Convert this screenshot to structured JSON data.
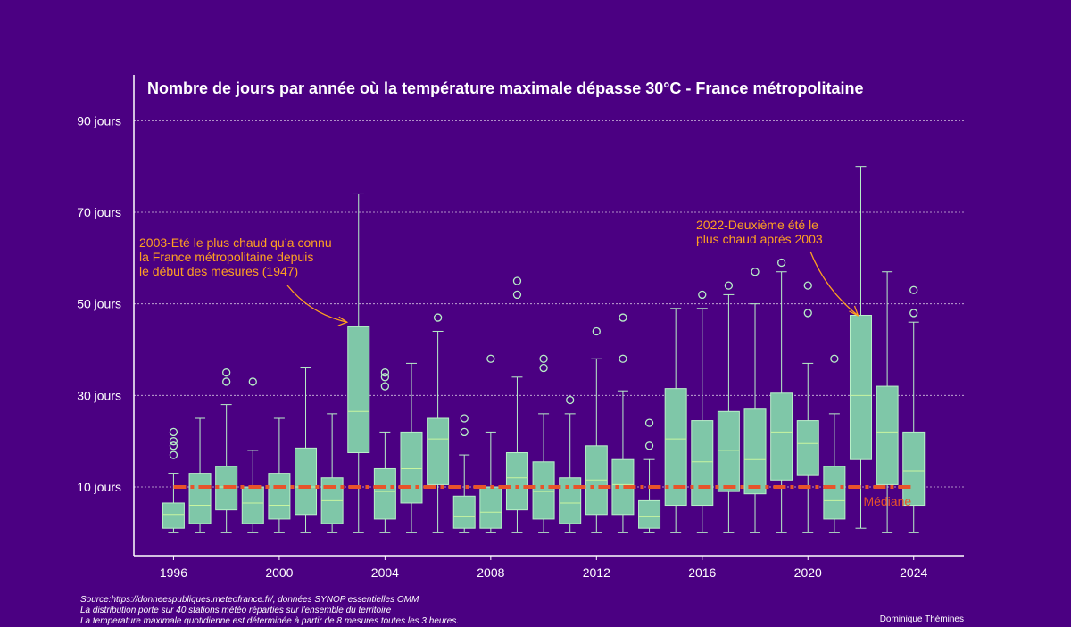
{
  "chart_data": {
    "type": "boxplot",
    "title": "Nombre de jours par année où la température maximale dépasse 30°C - France métropolitaine",
    "ylim": [
      -5,
      100
    ],
    "xlim": [
      1994.5,
      2025.9
    ],
    "yticks": [
      {
        "value": 10,
        "label": "10 jours"
      },
      {
        "value": 30,
        "label": "30 jours"
      },
      {
        "value": 50,
        "label": "50 jours"
      },
      {
        "value": 70,
        "label": "70 jours"
      },
      {
        "value": 90,
        "label": "90 jours"
      }
    ],
    "xticks": [
      1996,
      2000,
      2004,
      2008,
      2012,
      2016,
      2020,
      2024
    ],
    "grid": true,
    "colors": {
      "background": "#4b0082",
      "box_fill": "#7fc7a8",
      "box_edge": "#b8f0c8",
      "median_line": "#e8542a",
      "annotation": "#ffa020"
    },
    "boxes": [
      {
        "year": 1996,
        "low": 0,
        "q1": 1,
        "median": 4,
        "q3": 6.5,
        "high": 13,
        "outliers": [
          17,
          19,
          20,
          22
        ]
      },
      {
        "year": 1997,
        "low": 0,
        "q1": 2,
        "median": 6,
        "q3": 13,
        "high": 25,
        "outliers": []
      },
      {
        "year": 1998,
        "low": 0,
        "q1": 5,
        "median": 10,
        "q3": 14.5,
        "high": 28,
        "outliers": [
          33,
          35
        ]
      },
      {
        "year": 1999,
        "low": 0,
        "q1": 2,
        "median": 6.5,
        "q3": 10,
        "high": 18,
        "outliers": [
          33
        ]
      },
      {
        "year": 2000,
        "low": 0,
        "q1": 3,
        "median": 6,
        "q3": 13,
        "high": 25,
        "outliers": []
      },
      {
        "year": 2001,
        "low": 0,
        "q1": 4,
        "median": 10,
        "q3": 18.5,
        "high": 36,
        "outliers": []
      },
      {
        "year": 2002,
        "low": 0,
        "q1": 2,
        "median": 7,
        "q3": 12,
        "high": 26,
        "outliers": []
      },
      {
        "year": 2003,
        "low": 0,
        "q1": 17.5,
        "median": 26.5,
        "q3": 45,
        "high": 74,
        "outliers": []
      },
      {
        "year": 2004,
        "low": 0,
        "q1": 3,
        "median": 9,
        "q3": 14,
        "high": 22,
        "outliers": [
          32,
          34,
          35
        ]
      },
      {
        "year": 2005,
        "low": 0,
        "q1": 6.5,
        "median": 14,
        "q3": 22,
        "high": 37,
        "outliers": []
      },
      {
        "year": 2006,
        "low": 0,
        "q1": 10.5,
        "median": 20.5,
        "q3": 25,
        "high": 44,
        "outliers": [
          47
        ]
      },
      {
        "year": 2007,
        "low": 0,
        "q1": 1,
        "median": 3.5,
        "q3": 8,
        "high": 17,
        "outliers": [
          22,
          25
        ]
      },
      {
        "year": 2008,
        "low": 0,
        "q1": 1,
        "median": 4.5,
        "q3": 10,
        "high": 22,
        "outliers": [
          38
        ]
      },
      {
        "year": 2009,
        "low": 0,
        "q1": 5,
        "median": 12,
        "q3": 17.5,
        "high": 34,
        "outliers": [
          52,
          55
        ]
      },
      {
        "year": 2010,
        "low": 0,
        "q1": 3,
        "median": 9,
        "q3": 15.5,
        "high": 26,
        "outliers": [
          36,
          38
        ]
      },
      {
        "year": 2011,
        "low": 0,
        "q1": 2,
        "median": 6.5,
        "q3": 12,
        "high": 26,
        "outliers": [
          29
        ]
      },
      {
        "year": 2012,
        "low": 0,
        "q1": 4,
        "median": 11.5,
        "q3": 19,
        "high": 38,
        "outliers": [
          44
        ]
      },
      {
        "year": 2013,
        "low": 0,
        "q1": 4,
        "median": 10.5,
        "q3": 16,
        "high": 31,
        "outliers": [
          38,
          47
        ]
      },
      {
        "year": 2014,
        "low": 0,
        "q1": 1,
        "median": 3.5,
        "q3": 7,
        "high": 16,
        "outliers": [
          19,
          24
        ]
      },
      {
        "year": 2015,
        "low": 0,
        "q1": 6,
        "median": 20.5,
        "q3": 31.5,
        "high": 49,
        "outliers": []
      },
      {
        "year": 2016,
        "low": 0,
        "q1": 6,
        "median": 15.5,
        "q3": 24.5,
        "high": 49,
        "outliers": [
          52
        ]
      },
      {
        "year": 2017,
        "low": 0,
        "q1": 9,
        "median": 18,
        "q3": 26.5,
        "high": 52,
        "outliers": [
          54
        ]
      },
      {
        "year": 2018,
        "low": 0,
        "q1": 8.5,
        "median": 16,
        "q3": 27,
        "high": 50,
        "outliers": [
          57
        ]
      },
      {
        "year": 2019,
        "low": 0,
        "q1": 11.5,
        "median": 22,
        "q3": 30.5,
        "high": 57,
        "outliers": [
          59
        ]
      },
      {
        "year": 2020,
        "low": 0,
        "q1": 12.5,
        "median": 19.5,
        "q3": 24.5,
        "high": 37,
        "outliers": [
          48,
          54
        ]
      },
      {
        "year": 2021,
        "low": 0,
        "q1": 3,
        "median": 7,
        "q3": 14.5,
        "high": 26,
        "outliers": [
          38
        ]
      },
      {
        "year": 2022,
        "low": 1,
        "q1": 16,
        "median": 30,
        "q3": 47.5,
        "high": 80,
        "outliers": []
      },
      {
        "year": 2023,
        "low": 0,
        "q1": 10.5,
        "median": 22,
        "q3": 32,
        "high": 57,
        "outliers": []
      },
      {
        "year": 2024,
        "low": 0,
        "q1": 6,
        "median": 13.5,
        "q3": 22,
        "high": 46,
        "outliers": [
          48,
          53
        ]
      }
    ],
    "median_line": {
      "value": 10,
      "from": 1996,
      "to": 2024,
      "label": "Médiane"
    },
    "annotations": [
      {
        "lines": [
          "2003-Eté le plus chaud qu’a connu",
          "la France métropolitaine depuis",
          "le début des mesures (1947)"
        ],
        "target_year": 2003,
        "target_value": 46
      },
      {
        "lines": [
          "2022-Deuxième été le",
          "plus chaud après 2003"
        ],
        "target_year": 2022,
        "target_value": 48
      }
    ]
  },
  "footer": {
    "source_lines": [
      "Source:https://donneespubliques.meteofrance.fr/, données SYNOP essentielles OMM",
      "La distribution porte sur 40 stations météo réparties sur l'ensemble du territoire",
      "La temperature maximale quotidienne est déterminée à partir de 8 mesures toutes les 3 heures."
    ],
    "credit": "Dominique Thémines"
  }
}
